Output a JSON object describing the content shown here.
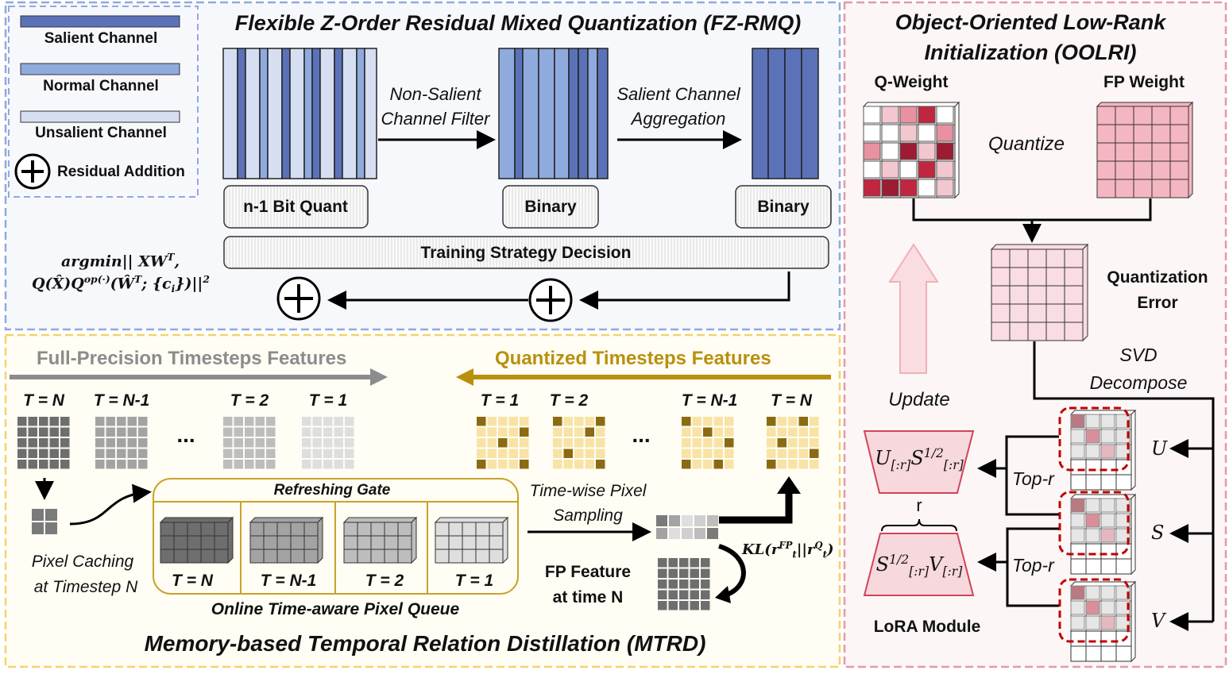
{
  "colors": {
    "salient": "#5b72b8",
    "normal": "#8faadc",
    "unsalient": "#d6dff2",
    "fzrmq_border": "#8faadc",
    "mtrd_border": "#f2d46b",
    "oolri_border": "#e39aa6",
    "gold": "#b8900d",
    "gray_arrow": "#8c8c8c",
    "red_dash": "#c00000"
  },
  "legend": {
    "salient": "Salient Channel",
    "normal": "Normal Channel",
    "unsalient": "Unsalient Channel",
    "residual": "Residual Addition"
  },
  "fzrmq": {
    "title": "Flexible Z-Order Residual Mixed Quantization (FZ-RMQ)",
    "filter_line1": "Non-Salient",
    "filter_line2": "Channel Filter",
    "agg_line1": "Salient Channel",
    "agg_line2": "Aggregation",
    "box1": "n-1 Bit Quant",
    "box2": "Binary",
    "box3": "Binary",
    "training": "Training Strategy Decision",
    "formula": {
      "argmin": "argmin|| XW",
      "T": "T",
      ",": ",",
      "q": "Q(X̂)Q",
      "op": "op(·)",
      "w": "(Ŵ",
      "wt": "T",
      "rest": "; {c",
      "i": "i",
      "end": "})||",
      "sq": "2"
    }
  },
  "mtrd": {
    "title": "Memory-based Temporal Relation Distillation (MTRD)",
    "fp_header": "Full-Precision Timesteps Features",
    "q_header": "Quantized Timesteps Features",
    "fp_steps": [
      "T = N",
      "T = N-1",
      "T = 2",
      "T = 1"
    ],
    "q_steps": [
      "T = 1",
      "T = 2",
      "T = N-1",
      "T = N"
    ],
    "ellipsis": "...",
    "pixel_caching_line1": "Pixel Caching",
    "pixel_caching_line2": "at Timestep N",
    "refreshing_gate": "Refreshing Gate",
    "queue_steps": [
      "T = N",
      "T = N-1",
      "T = 2",
      "T = 1"
    ],
    "queue_label": "Online Time-aware Pixel Queue",
    "sampling_line1": "Time-wise Pixel",
    "sampling_line2": "Sampling",
    "fp_feature_line1": "FP Feature",
    "fp_feature_line2": "at time N",
    "kl": {
      "a": "KL(r",
      "sup1": "FP",
      "sub1": "t",
      "mid": "||r",
      "sup2": "Q",
      "sub2": "t",
      "end": ")"
    }
  },
  "oolri": {
    "title_line1": "Object-Oriented Low-Rank",
    "title_line2": "Initialization (OOLRI)",
    "q_weight": "Q-Weight",
    "fp_weight": "FP Weight",
    "quantize": "Quantize",
    "qerr_line1": "Quantization",
    "qerr_line2": "Error",
    "svd_line1": "SVD",
    "svd_line2": "Decompose",
    "update": "Update",
    "top_r": "Top-r",
    "u": "U",
    "s": "S",
    "v": "V",
    "lora_a": {
      "m1": "U",
      "s1": "[:r]",
      "m2": "S",
      "sup": "1/2",
      "s2": "[:r]"
    },
    "lora_b": {
      "m1": "S",
      "sup": "1/2",
      "s1": "[:r]",
      "m2": "V",
      "s2": "[:r]"
    },
    "rank": "r",
    "lora_label": "LoRA Module"
  }
}
